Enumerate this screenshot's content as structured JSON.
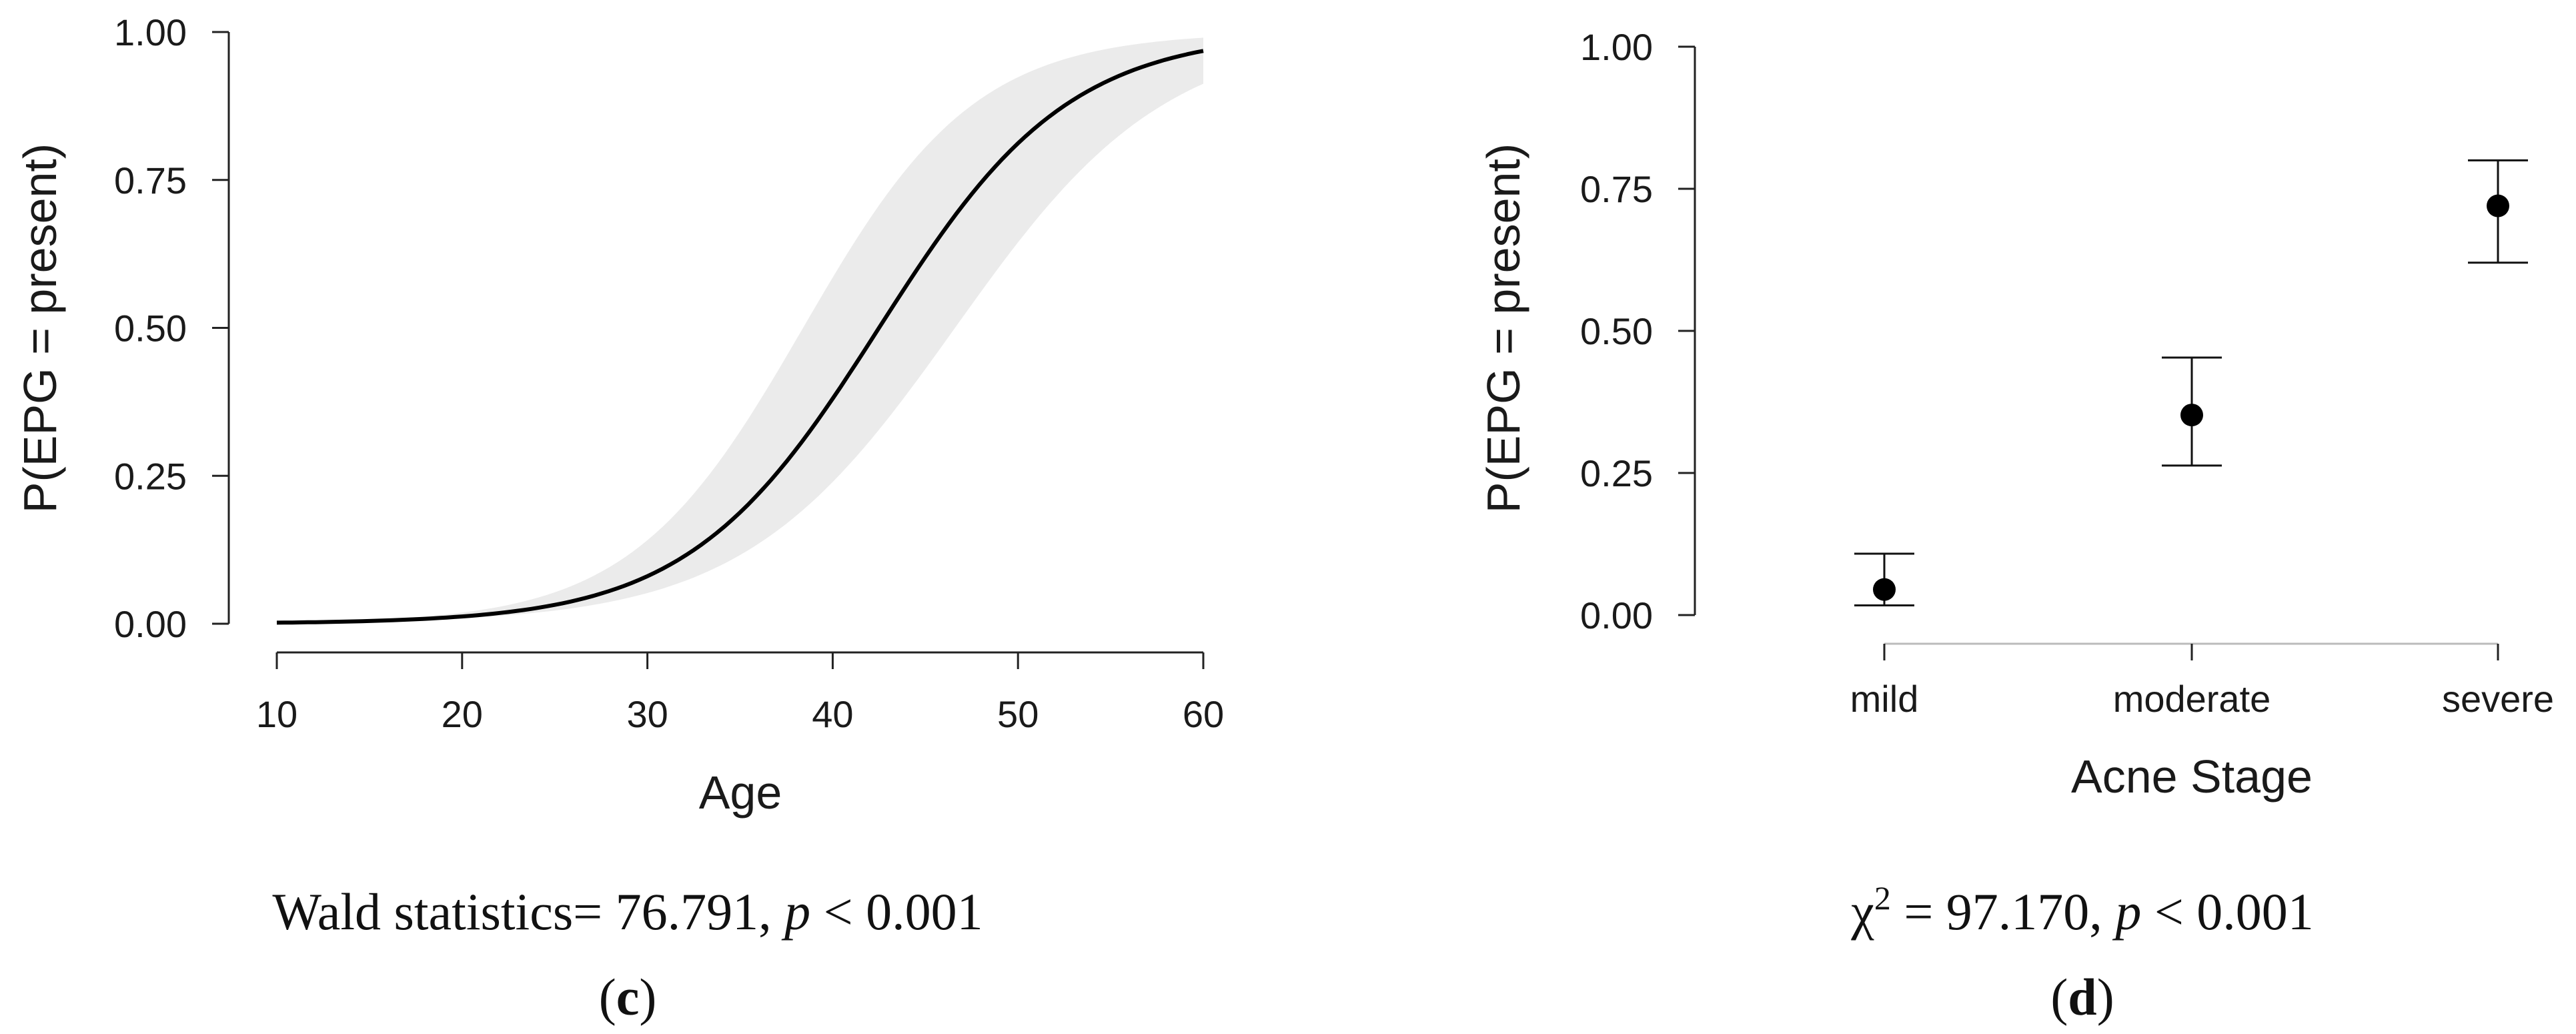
{
  "chart_data": [
    {
      "panel_label": "c",
      "type": "line",
      "xlabel": "Age",
      "ylabel": "P(EPG = present)",
      "xlim": [
        10,
        60
      ],
      "ylim": [
        0,
        1
      ],
      "xticks": [
        10,
        20,
        30,
        40,
        50,
        60
      ],
      "yticks": [
        "0.00",
        "0.25",
        "0.50",
        "0.75",
        "1.00"
      ],
      "logistic_fit": {
        "midpoint_age": 42.5,
        "slope": 0.195
      },
      "confidence_band": {
        "lower_midpoint_age": 46.6,
        "lower_slope": 0.175,
        "upper_midpoint_age": 38.4,
        "upper_slope": 0.215
      },
      "band_color": "#ebebeb",
      "line_color": "#000000",
      "caption": {
        "statistic_prefix": "Wald statistics= 76.791, ",
        "p_symbol": "p",
        "p_value": " < 0.001"
      }
    },
    {
      "panel_label": "d",
      "type": "scatter",
      "xlabel": "Acne Stage",
      "ylabel": "P(EPG = present)",
      "categories": [
        "mild",
        "moderate",
        "severe"
      ],
      "ylim": [
        0,
        1
      ],
      "yticks": [
        "0.00",
        "0.25",
        "0.50",
        "0.75",
        "1.00"
      ],
      "values": [
        0.045,
        0.352,
        0.72
      ],
      "ci_lower": [
        0.017,
        0.263,
        0.62
      ],
      "ci_upper": [
        0.108,
        0.453,
        0.8
      ],
      "marker_color": "#000000",
      "caption": {
        "chi_symbol": "χ",
        "chi_exponent": "2",
        "statistic_value": " = 97.170, ",
        "p_symbol": "p",
        "p_value": " < 0.001"
      }
    }
  ]
}
